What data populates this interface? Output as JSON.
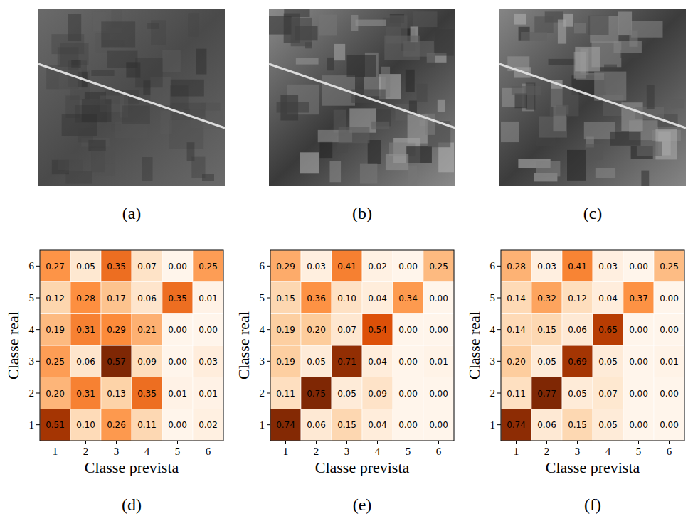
{
  "images": [
    {
      "label": "(a)"
    },
    {
      "label": "(b)"
    },
    {
      "label": "(c)"
    }
  ],
  "chart_data": [
    {
      "type": "heatmap",
      "title": "(d)",
      "x_label": "Classe prevista",
      "y_label": "Classe real",
      "xticks": [
        1,
        2,
        3,
        4,
        5,
        6
      ],
      "yticks": [
        1,
        2,
        3,
        4,
        5,
        6
      ],
      "xlim": [
        0.5,
        6.5
      ],
      "ylim": [
        6.5,
        0.5
      ],
      "data_labels": true,
      "cells": [
        [
          0.51,
          0.1,
          0.26,
          0.11,
          0.0,
          0.02
        ],
        [
          0.2,
          0.31,
          0.13,
          0.35,
          0.01,
          0.01
        ],
        [
          0.25,
          0.06,
          0.57,
          0.09,
          0.0,
          0.03
        ],
        [
          0.19,
          0.31,
          0.29,
          0.21,
          0.0,
          0.0
        ],
        [
          0.12,
          0.28,
          0.17,
          0.06,
          0.35,
          0.01
        ],
        [
          0.27,
          0.05,
          0.35,
          0.07,
          0.0,
          0.25
        ]
      ]
    },
    {
      "type": "heatmap",
      "title": "(e)",
      "x_label": "Classe prevista",
      "y_label": "Classe real",
      "xticks": [
        1,
        2,
        3,
        4,
        5,
        6
      ],
      "yticks": [
        1,
        2,
        3,
        4,
        5,
        6
      ],
      "xlim": [
        0.5,
        6.5
      ],
      "ylim": [
        6.5,
        0.5
      ],
      "data_labels": true,
      "cells": [
        [
          0.74,
          0.06,
          0.15,
          0.04,
          0.0,
          0.0
        ],
        [
          0.11,
          0.75,
          0.05,
          0.09,
          0.0,
          0.0
        ],
        [
          0.19,
          0.05,
          0.71,
          0.04,
          0.0,
          0.01
        ],
        [
          0.19,
          0.2,
          0.07,
          0.54,
          0.0,
          0.0
        ],
        [
          0.15,
          0.36,
          0.1,
          0.04,
          0.34,
          0.0
        ],
        [
          0.29,
          0.03,
          0.41,
          0.02,
          0.0,
          0.25
        ]
      ]
    },
    {
      "type": "heatmap",
      "title": "(f)",
      "x_label": "Classe prevista",
      "y_label": "Classe real",
      "xticks": [
        1,
        2,
        3,
        4,
        5,
        6
      ],
      "yticks": [
        1,
        2,
        3,
        4,
        5,
        6
      ],
      "xlim": [
        0.5,
        6.5
      ],
      "ylim": [
        6.5,
        0.5
      ],
      "data_labels": true,
      "cells": [
        [
          0.74,
          0.06,
          0.15,
          0.05,
          0.0,
          0.0
        ],
        [
          0.11,
          0.77,
          0.05,
          0.07,
          0.0,
          0.0
        ],
        [
          0.2,
          0.05,
          0.69,
          0.05,
          0.0,
          0.01
        ],
        [
          0.14,
          0.15,
          0.06,
          0.65,
          0.0,
          0.0
        ],
        [
          0.14,
          0.32,
          0.12,
          0.04,
          0.37,
          0.0
        ],
        [
          0.28,
          0.03,
          0.41,
          0.03,
          0.0,
          0.25
        ]
      ]
    }
  ]
}
